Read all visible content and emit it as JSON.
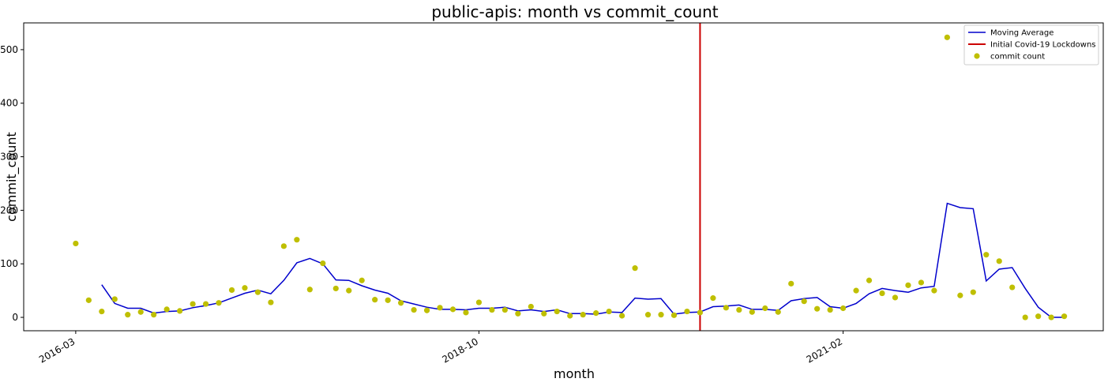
{
  "chart_data": {
    "type": "line",
    "title": "public-apis: month vs commit_count",
    "xlabel": "month",
    "ylabel": "commit_count",
    "ylim": [
      -25,
      550
    ],
    "y_ticks": [
      0,
      100,
      200,
      300,
      400,
      500
    ],
    "x_ticks": [
      "2016-03",
      "2018-10",
      "2021-02"
    ],
    "xlim_months": [
      "2015-11",
      "2022-10"
    ],
    "grid": false,
    "legend_position": "top-right",
    "series": [
      {
        "name": "Moving Average",
        "kind": "line",
        "color": "#0000cc",
        "x": [
          "2016-05",
          "2016-06",
          "2016-07",
          "2016-08",
          "2016-09",
          "2016-10",
          "2016-11",
          "2016-12",
          "2017-01",
          "2017-02",
          "2017-03",
          "2017-04",
          "2017-05",
          "2017-06",
          "2017-07",
          "2017-08",
          "2017-09",
          "2017-10",
          "2017-11",
          "2017-12",
          "2018-01",
          "2018-02",
          "2018-03",
          "2018-04",
          "2018-05",
          "2018-06",
          "2018-07",
          "2018-08",
          "2018-09",
          "2018-10",
          "2018-11",
          "2018-12",
          "2019-01",
          "2019-02",
          "2019-03",
          "2019-04",
          "2019-05",
          "2019-06",
          "2019-07",
          "2019-08",
          "2019-09",
          "2019-10",
          "2019-11",
          "2019-12",
          "2020-01",
          "2020-02",
          "2020-03",
          "2020-04",
          "2020-05",
          "2020-06",
          "2020-07",
          "2020-08",
          "2020-09",
          "2020-10",
          "2020-11",
          "2020-12",
          "2021-01",
          "2021-02",
          "2021-03",
          "2021-04",
          "2021-05",
          "2021-06",
          "2021-07",
          "2021-08",
          "2021-09",
          "2021-10",
          "2021-11",
          "2021-12",
          "2022-01",
          "2022-02",
          "2022-03",
          "2022-04",
          "2022-05",
          "2022-06",
          "2022-07"
        ],
        "values": [
          61,
          26,
          17,
          17,
          8,
          11,
          12,
          18,
          22,
          27,
          36,
          45,
          51,
          44,
          69,
          102,
          110,
          100,
          70,
          69,
          59,
          51,
          45,
          31,
          25,
          19,
          15,
          15,
          14,
          17,
          17,
          19,
          12,
          14,
          11,
          14,
          7,
          7,
          6,
          10,
          9,
          36,
          34,
          35,
          6,
          9,
          10,
          20,
          21,
          23,
          15,
          15,
          13,
          31,
          35,
          37,
          20,
          17,
          26,
          44,
          54,
          50,
          47,
          55,
          58,
          213,
          205,
          203,
          68,
          90,
          93,
          54,
          19,
          0,
          0
        ]
      },
      {
        "name": "Initial Covid-19 Lockdowns",
        "kind": "vline",
        "color": "#cc0000",
        "x": "2020-03"
      },
      {
        "name": "commit count",
        "kind": "scatter",
        "color": "#bfbf00",
        "x": [
          "2016-03",
          "2016-04",
          "2016-05",
          "2016-06",
          "2016-07",
          "2016-08",
          "2016-09",
          "2016-10",
          "2016-11",
          "2016-12",
          "2017-01",
          "2017-02",
          "2017-03",
          "2017-04",
          "2017-05",
          "2017-06",
          "2017-07",
          "2017-08",
          "2017-09",
          "2017-10",
          "2017-11",
          "2017-12",
          "2018-01",
          "2018-02",
          "2018-03",
          "2018-04",
          "2018-05",
          "2018-06",
          "2018-07",
          "2018-08",
          "2018-09",
          "2018-10",
          "2018-11",
          "2018-12",
          "2019-01",
          "2019-02",
          "2019-03",
          "2019-04",
          "2019-05",
          "2019-06",
          "2019-07",
          "2019-08",
          "2019-09",
          "2019-10",
          "2019-11",
          "2019-12",
          "2020-01",
          "2020-02",
          "2020-03",
          "2020-04",
          "2020-05",
          "2020-06",
          "2020-07",
          "2020-08",
          "2020-09",
          "2020-10",
          "2020-11",
          "2020-12",
          "2021-01",
          "2021-02",
          "2021-03",
          "2021-04",
          "2021-05",
          "2021-06",
          "2021-07",
          "2021-08",
          "2021-09",
          "2021-10",
          "2021-11",
          "2021-12",
          "2022-01",
          "2022-02",
          "2022-03",
          "2022-04",
          "2022-05",
          "2022-06",
          "2022-07"
        ],
        "values": [
          138,
          32,
          11,
          34,
          5,
          10,
          5,
          15,
          12,
          25,
          25,
          27,
          51,
          55,
          47,
          28,
          133,
          145,
          52,
          101,
          54,
          50,
          69,
          33,
          32,
          27,
          14,
          13,
          18,
          15,
          9,
          28,
          14,
          14,
          7,
          20,
          7,
          11,
          3,
          5,
          8,
          11,
          3,
          92,
          5,
          5,
          4,
          11,
          9,
          36,
          18,
          14,
          10,
          17,
          10,
          63,
          30,
          16,
          14,
          17,
          50,
          69,
          45,
          37,
          60,
          65,
          50,
          523,
          41,
          47,
          117,
          105,
          56,
          0,
          2,
          0,
          2
        ]
      }
    ]
  }
}
